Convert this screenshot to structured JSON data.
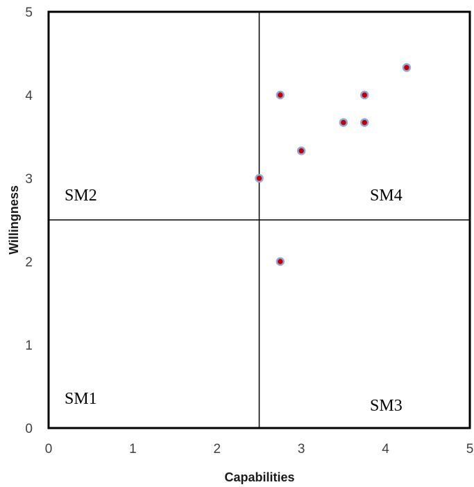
{
  "chart_data": {
    "type": "scatter",
    "title": "",
    "xlabel": "Capabilities",
    "ylabel": "Willingness",
    "xlim": [
      0,
      5
    ],
    "ylim": [
      0,
      5
    ],
    "xticks": [
      "0",
      "1",
      "2",
      "3",
      "4",
      "5"
    ],
    "yticks": [
      "0",
      "1",
      "2",
      "3",
      "4",
      "5"
    ],
    "grid": false,
    "divider_x": 2.5,
    "divider_y": 2.5,
    "quadrants": [
      {
        "label": "SM1",
        "position": "bottom-left"
      },
      {
        "label": "SM2",
        "position": "top-left"
      },
      {
        "label": "SM3",
        "position": "bottom-right"
      },
      {
        "label": "SM4",
        "position": "top-right"
      }
    ],
    "points": [
      {
        "x": 2.5,
        "y": 3.0
      },
      {
        "x": 2.75,
        "y": 4.0
      },
      {
        "x": 2.75,
        "y": 2.0
      },
      {
        "x": 3.0,
        "y": 3.33
      },
      {
        "x": 3.5,
        "y": 3.67
      },
      {
        "x": 3.75,
        "y": 3.67
      },
      {
        "x": 3.75,
        "y": 4.0
      },
      {
        "x": 4.25,
        "y": 4.33
      }
    ],
    "marker_fill": "#c00000",
    "marker_edge": "#8ea9db"
  }
}
